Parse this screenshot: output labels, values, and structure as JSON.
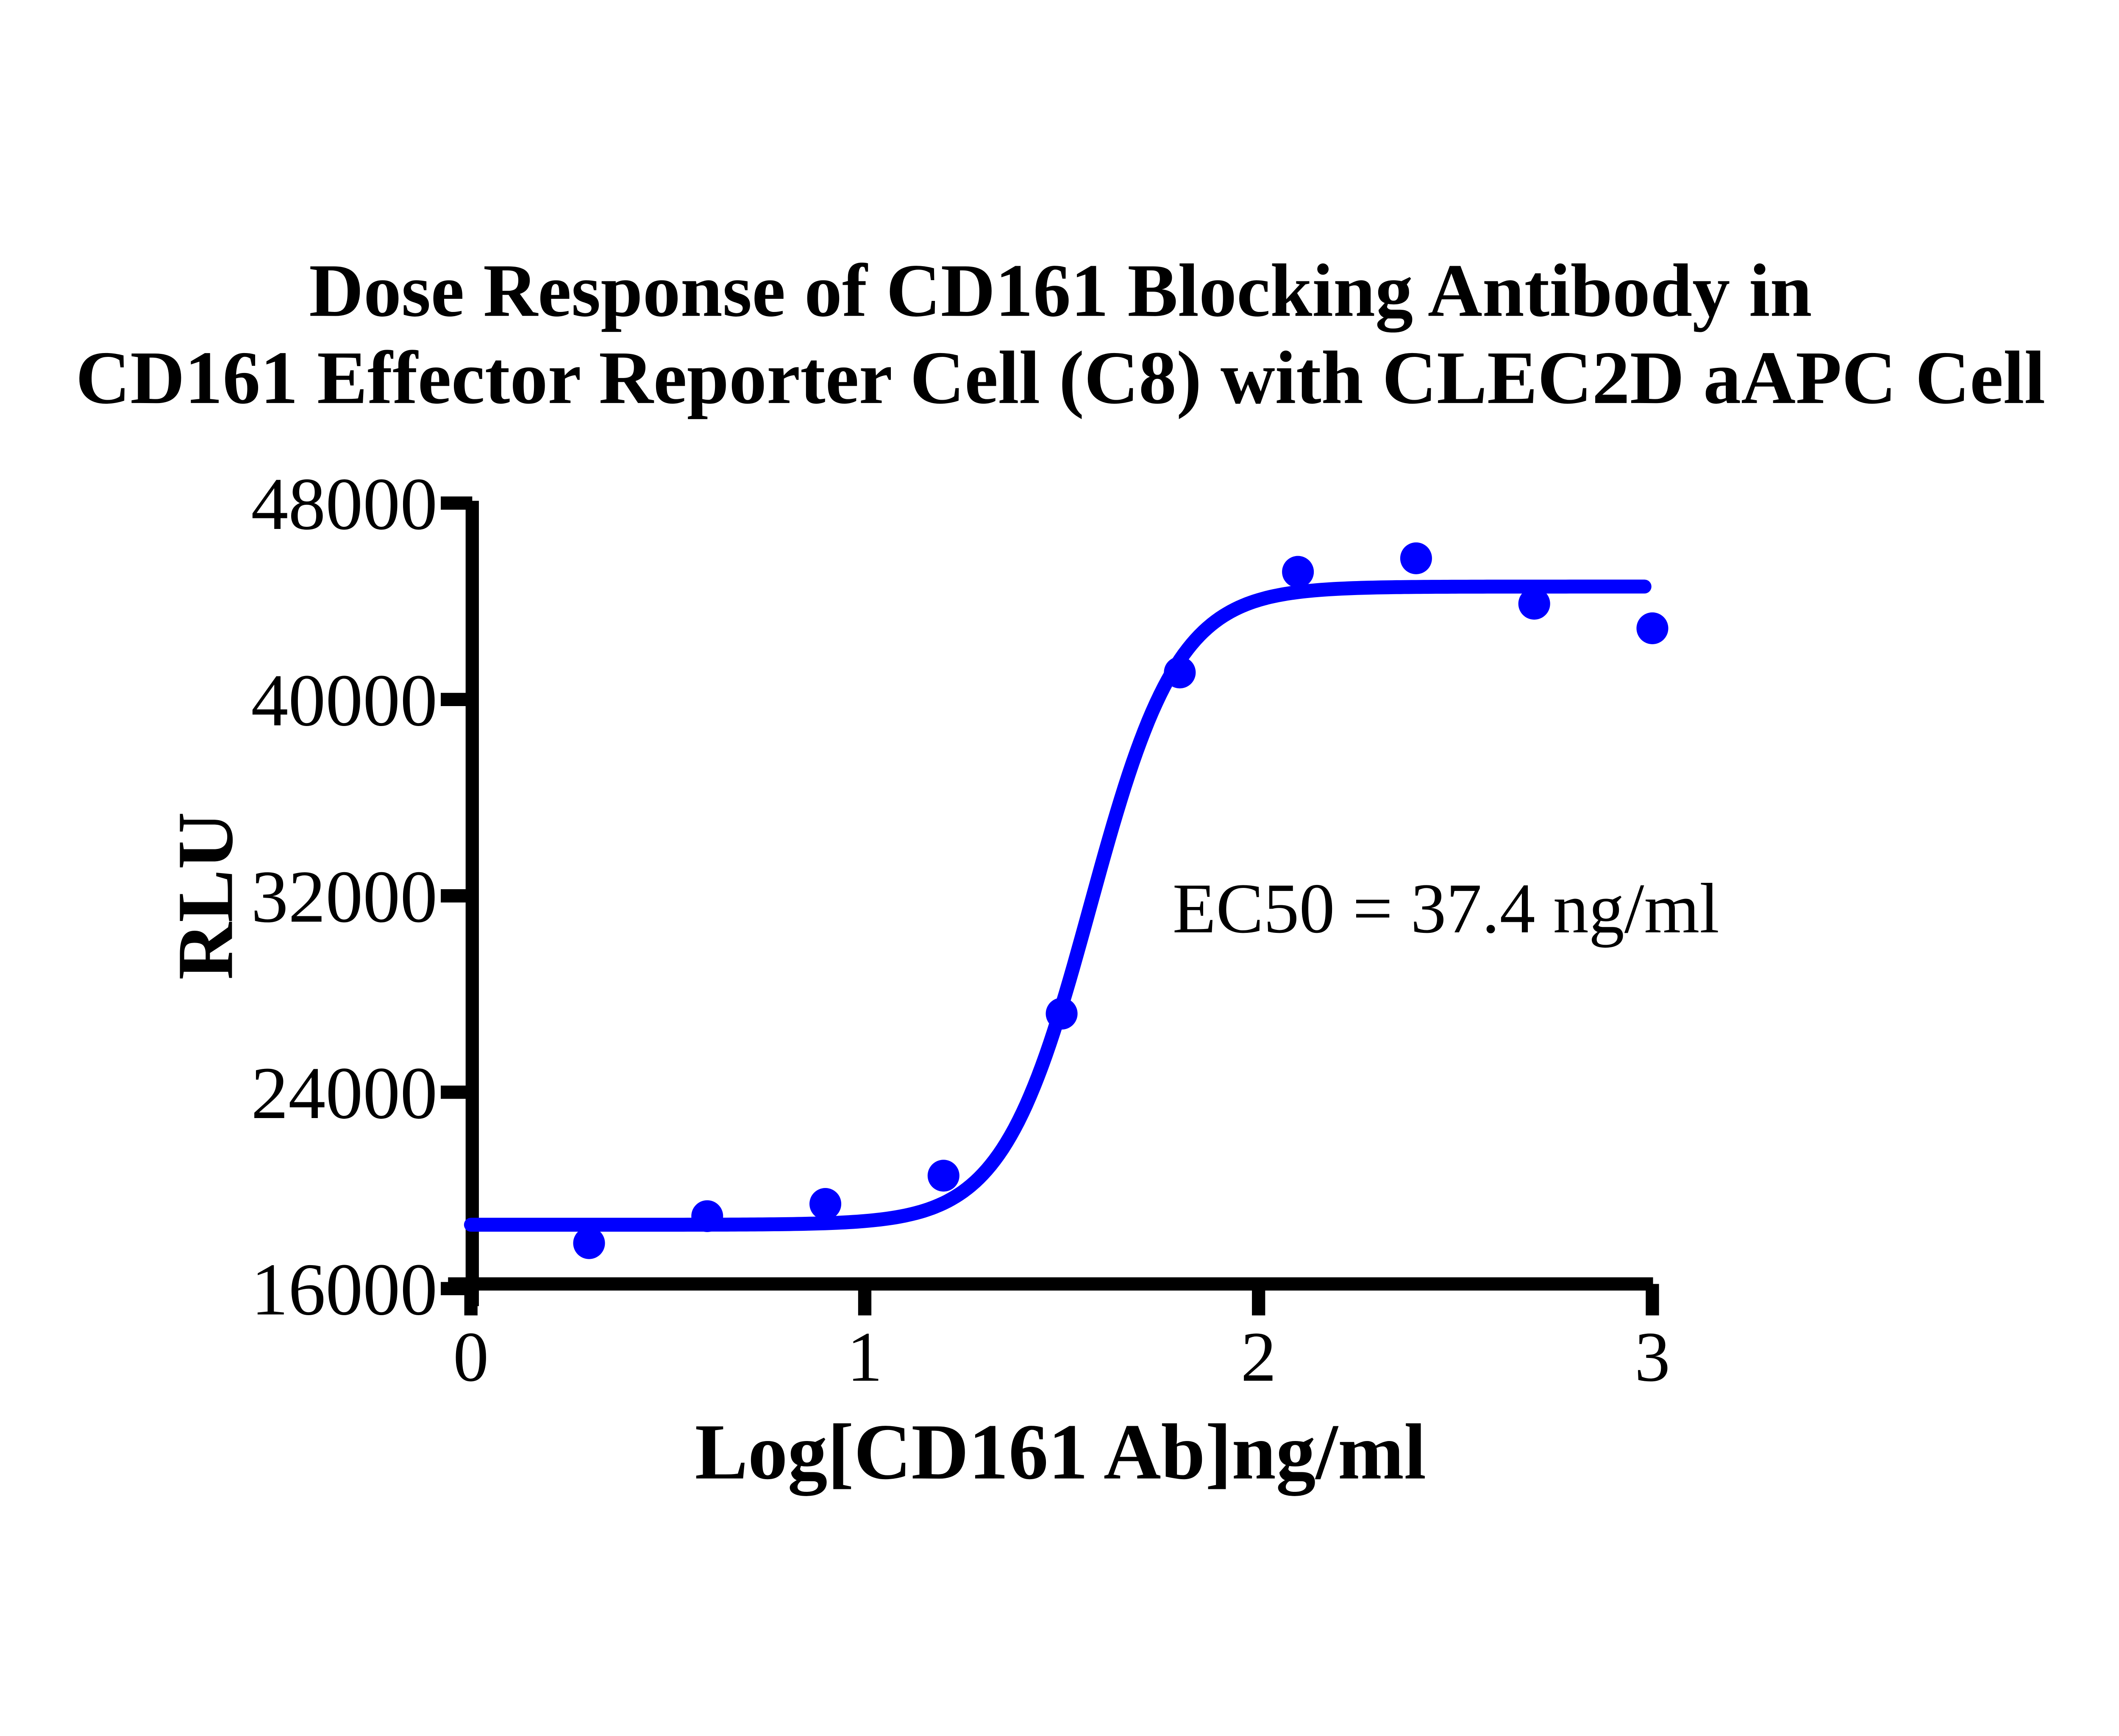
{
  "chart_data": {
    "type": "scatter",
    "title_line1": "Dose Response of CD161 Blocking Antibody in",
    "title_line2": "CD161 Effector Reporter Cell (C8) with CLEC2D aAPC Cell",
    "xlabel": "Log[CD161 Ab]ng/ml",
    "ylabel": "RLU",
    "annotation": "EC50 = 37.4 ng/ml",
    "x_ticks": [
      0,
      1,
      2,
      3
    ],
    "y_ticks": [
      16000,
      24000,
      32000,
      40000,
      48000
    ],
    "xlim": [
      0,
      3
    ],
    "ylim": [
      16000,
      48000
    ],
    "grid": false,
    "legend": "none",
    "x": [
      0.3,
      0.6,
      0.9,
      1.2,
      1.5,
      1.8,
      2.1,
      2.4,
      2.7,
      3.0
    ],
    "y": [
      17850,
      18950,
      19450,
      20600,
      27200,
      41100,
      45200,
      45750,
      43900,
      42900
    ],
    "fit": {
      "model": "4PL-sigmoid",
      "bottom": 18600,
      "top": 44600,
      "ec50_ng_ml": 37.4,
      "hill_slope": 3.9,
      "curve_x_range": [
        0,
        2.98
      ]
    },
    "colors": {
      "curve": "#0000FF",
      "points": "#0000FF",
      "axis": "#000000",
      "text": "#000000",
      "background": "#FFFFFF"
    }
  }
}
